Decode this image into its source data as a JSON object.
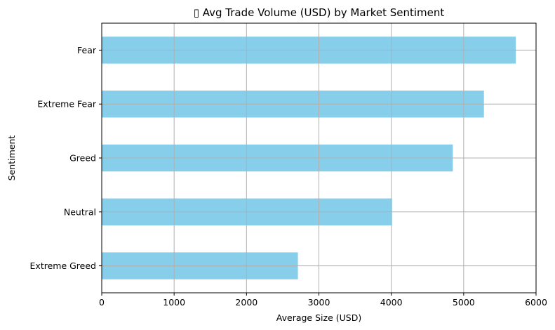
{
  "chart_data": {
    "type": "bar",
    "orientation": "horizontal",
    "title": "▯ Avg Trade Volume (USD) by Market Sentiment",
    "xlabel": "Average Size (USD)",
    "ylabel": "Sentiment",
    "categories": [
      "Extreme Greed",
      "Neutral",
      "Greed",
      "Extreme Fear",
      "Fear"
    ],
    "values": [
      2710,
      4010,
      4850,
      5280,
      5720
    ],
    "xlim": [
      0,
      6000
    ],
    "xticks": [
      "0",
      "1000",
      "2000",
      "3000",
      "4000",
      "5000",
      "6000"
    ],
    "grid": true,
    "bar_color": "#87ceeb",
    "grid_color": "#b0b0b0"
  }
}
